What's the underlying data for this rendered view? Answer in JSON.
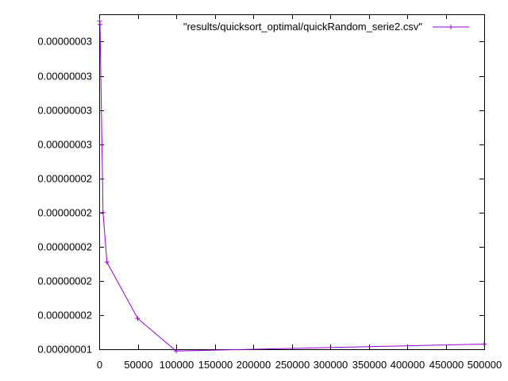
{
  "chart_data": {
    "type": "line",
    "title": "",
    "xlabel": "",
    "ylabel": "",
    "xlim": [
      0,
      500000
    ],
    "ylim": [
      1.3e-08,
      3.26e-08
    ],
    "x_ticks": [
      0,
      50000,
      100000,
      150000,
      200000,
      250000,
      300000,
      350000,
      400000,
      450000,
      500000
    ],
    "x_tick_labels": [
      "0",
      "50000",
      "100000",
      "150000",
      "200000",
      "250000",
      "300000",
      "350000",
      "400000",
      "450000",
      "500000"
    ],
    "y_ticks": [
      1.3e-08,
      1.5e-08,
      1.7e-08,
      1.9e-08,
      2.1e-08,
      2.3e-08,
      2.5e-08,
      2.7e-08,
      2.9e-08,
      3.1e-08,
      3.3e-08
    ],
    "y_tick_labels": [
      "0.00000001",
      "0.00000002",
      "0.00000002",
      "0.00000002",
      "0.00000002",
      "0.00000002",
      "0.00000003",
      "0.00000003",
      "0.00000003",
      "0.00000003",
      "0.00000003"
    ],
    "grid": false,
    "legend_position": "top-right",
    "series": [
      {
        "name": "\"results/quicksort_optimal/quickRandom_serie2.csv\"",
        "color": "#9400d3",
        "marker": "plus",
        "x": [
          500,
          1000,
          5000,
          10000,
          50000,
          100000,
          500000
        ],
        "y": [
          3.22e-08,
          3.2e-08,
          2.1e-08,
          1.81e-08,
          1.48e-08,
          1.29e-08,
          1.33e-08
        ]
      }
    ]
  }
}
